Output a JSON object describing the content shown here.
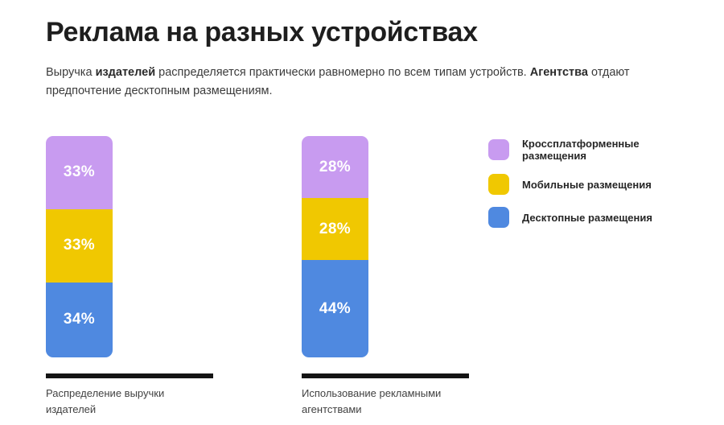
{
  "page": {
    "title": "Реклама на разных устройствах",
    "description": {
      "part1": "Выручка ",
      "bold1": "издателей",
      "part2": " распределяется практически равномерно по всем типам устройств. ",
      "bold2": "Агентства",
      "part3": " отдают предпочтение десктопным размещениям."
    }
  },
  "colors": {
    "cross_platform": "#c89bf0",
    "mobile": "#f0c801",
    "desktop": "#4f89e0",
    "caption_rule": "#141414",
    "title_text": "#1e1e1e",
    "body_text": "#3b3b3b"
  },
  "legend": {
    "items": [
      {
        "label": "Кроссплатформенные размещения",
        "color": "#c89bf0"
      },
      {
        "label": "Мобильные размещения",
        "color": "#f0c801"
      },
      {
        "label": "Десктопные размещения",
        "color": "#4f89e0"
      }
    ]
  },
  "chart_data": {
    "type": "bar",
    "subtype": "stacked-vertical-100percent",
    "unit": "%",
    "title": "Реклама на разных устройствах",
    "legend_position": "right",
    "categories": [
      "Распределение выручки издателей",
      "Использование рекламными агентствами"
    ],
    "series": [
      {
        "name": "Кроссплатформенные размещения",
        "color": "#c89bf0",
        "values": [
          33,
          28
        ]
      },
      {
        "name": "Мобильные размещения",
        "color": "#f0c801",
        "values": [
          33,
          28
        ]
      },
      {
        "name": "Десктопные размещения",
        "color": "#4f89e0",
        "values": [
          34,
          44
        ]
      }
    ],
    "charts": [
      {
        "caption_line1": "Распределение выручки",
        "caption_line2": "издателей",
        "segments": [
          {
            "label": "33%",
            "value": 33,
            "color": "#c89bf0",
            "name": "Кроссплатформенные размещения"
          },
          {
            "label": "33%",
            "value": 33,
            "color": "#f0c801",
            "name": "Мобильные размещения"
          },
          {
            "label": "34%",
            "value": 34,
            "color": "#4f89e0",
            "name": "Десктопные размещения"
          }
        ]
      },
      {
        "caption_line1": "Использование рекламными",
        "caption_line2": "агентствами",
        "segments": [
          {
            "label": "28%",
            "value": 28,
            "color": "#c89bf0",
            "name": "Кроссплатформенные размещения"
          },
          {
            "label": "28%",
            "value": 28,
            "color": "#f0c801",
            "name": "Мобильные размещения"
          },
          {
            "label": "44%",
            "value": 44,
            "color": "#4f89e0",
            "name": "Десктопные размещения"
          }
        ]
      }
    ]
  }
}
